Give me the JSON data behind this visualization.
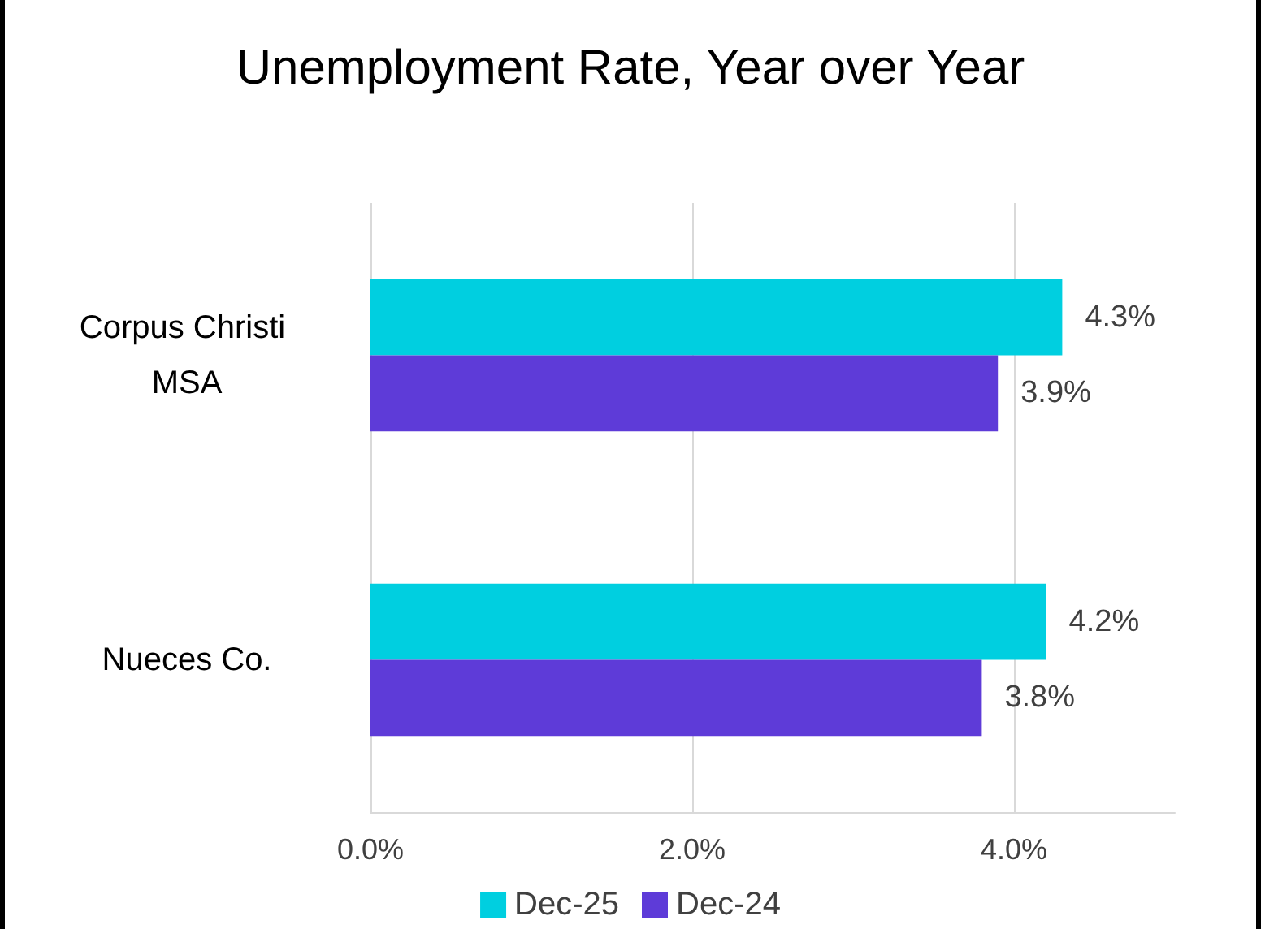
{
  "chart_data": {
    "type": "bar",
    "orientation": "horizontal",
    "title": "Unemployment Rate, Year over Year",
    "categories": [
      "Corpus Christi MSA",
      "Nueces Co."
    ],
    "series": [
      {
        "name": "Dec-25",
        "color": "#00cfe0",
        "values": [
          4.3,
          4.2
        ],
        "value_labels": [
          "4.3%",
          "4.2%"
        ]
      },
      {
        "name": "Dec-24",
        "color": "#5e3bd8",
        "values": [
          3.9,
          3.8
        ],
        "value_labels": [
          "3.9%",
          "3.8%"
        ]
      }
    ],
    "xlim": [
      0,
      5
    ],
    "xticks": [
      {
        "value": 0,
        "label": "0.0%"
      },
      {
        "value": 2,
        "label": "2.0%"
      },
      {
        "value": 4,
        "label": "4.0%"
      }
    ],
    "grid": "x",
    "legend": "bottom"
  }
}
